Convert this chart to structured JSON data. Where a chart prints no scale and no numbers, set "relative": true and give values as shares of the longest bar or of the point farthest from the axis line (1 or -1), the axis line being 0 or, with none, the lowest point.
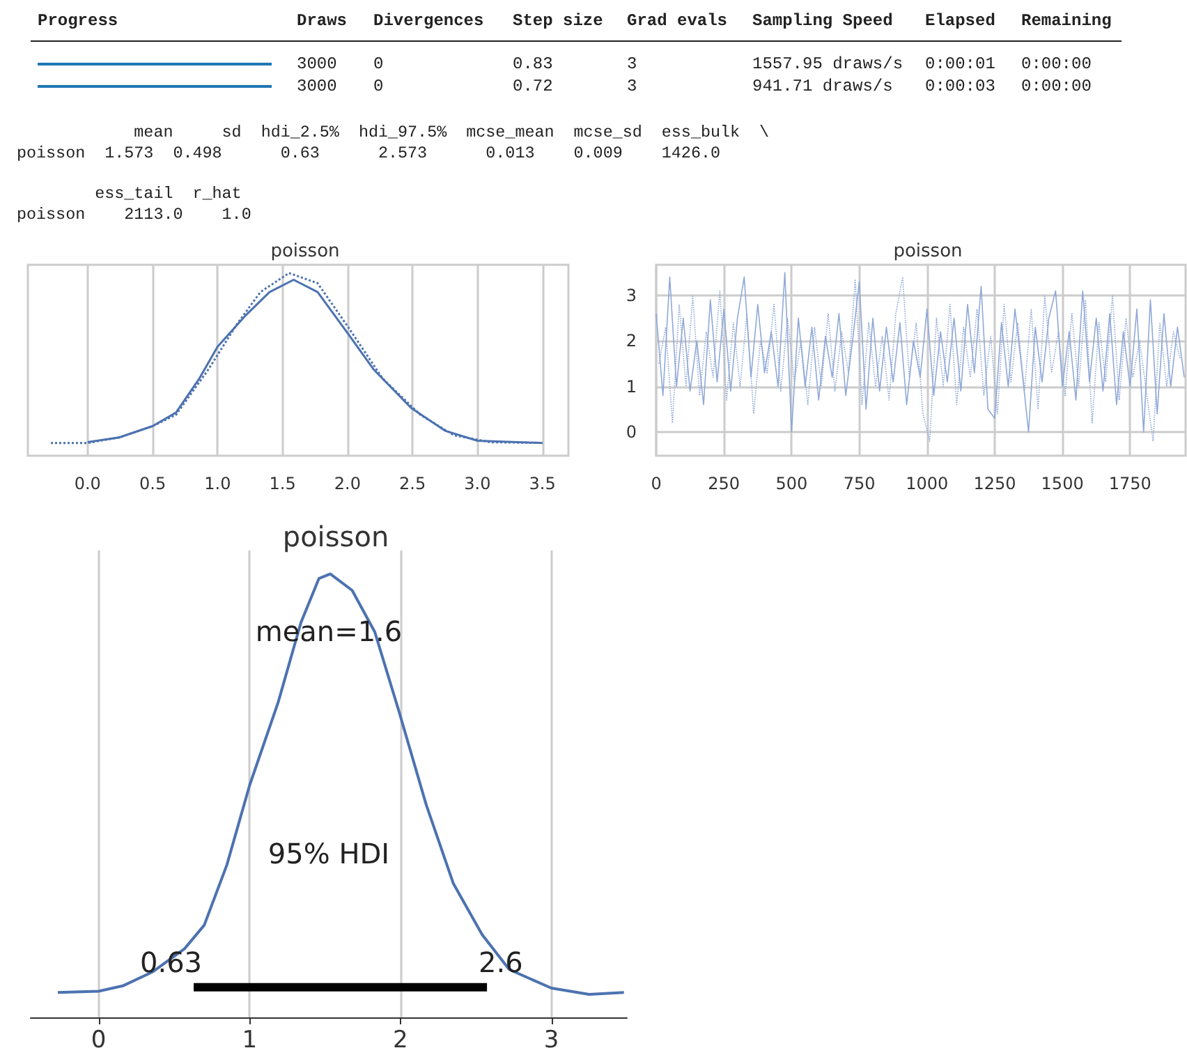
{
  "chart_data": [
    {
      "type": "other",
      "annotations": [
        "Progress",
        "Draws",
        "Divergences",
        "Step size",
        "Grad evals",
        "Sampling Speed",
        "Elapsed",
        "Remaining",
        "3000",
        "0",
        "0.83",
        "3",
        "1557.95 draws/s",
        "0:00:01",
        "0:00:00",
        "3000",
        "0",
        "0.72",
        "3",
        "941.71 draws/s",
        "0:00:03",
        "0:00:00"
      ]
    },
    {
      "type": "other",
      "annotations": [
        "            mean     sd  hdi_2.5%  hdi_97.5%  mcse_mean  mcse_sd  ess_bulk  \\",
        "poisson  1.573  0.498      0.63      2.573      0.013    0.009    1426.0",
        "        ess_tail  r_hat",
        "poisson    2113.0    1.0"
      ]
    },
    {
      "type": "line",
      "title": "poisson",
      "relative": true,
      "grid": "x",
      "xlim": [
        -0.46,
        3.7
      ],
      "xticks": [
        {
          "value": 0,
          "label": "0.0"
        },
        {
          "value": 0.5,
          "label": "0.5"
        },
        {
          "value": 1,
          "label": "1.0"
        },
        {
          "value": 1.5,
          "label": "1.5"
        },
        {
          "value": 2,
          "label": "2.0"
        },
        {
          "value": 2.5,
          "label": "2.5"
        },
        {
          "value": 3,
          "label": "3.0"
        },
        {
          "value": 3.5,
          "label": "3.5"
        }
      ],
      "series": [
        {
          "color": "#4c72b0",
          "line_style": "solid",
          "x": [
            0,
            0.243,
            0.5,
            0.68,
            0.86,
            1.0,
            1.22,
            1.4,
            1.585,
            1.77,
            2.0,
            2.2,
            2.49,
            2.75,
            3.0,
            3.5
          ],
          "values": [
            0.074,
            0.1,
            0.162,
            0.236,
            0.423,
            0.597,
            0.771,
            0.896,
            0.963,
            0.896,
            0.672,
            0.473,
            0.261,
            0.137,
            0.082,
            0.07
          ]
        },
        {
          "color": "#4c72b0",
          "line_style": "dotted",
          "x": [
            -0.283,
            0,
            0.243,
            0.5,
            0.68,
            0.93,
            1.15,
            1.33,
            1.55,
            1.77,
            2.0,
            2.27,
            2.56,
            2.82,
            3.1,
            3.5
          ],
          "values": [
            0.07,
            0.07,
            0.1,
            0.162,
            0.224,
            0.473,
            0.721,
            0.896,
            1.0,
            0.944,
            0.709,
            0.423,
            0.224,
            0.112,
            0.074,
            0.07
          ]
        }
      ]
    },
    {
      "type": "line",
      "title": "poisson",
      "grid": true,
      "xlim": [
        0,
        1955
      ],
      "ylim": [
        -0.52,
        3.67
      ],
      "xticks": [
        0,
        250,
        500,
        750,
        1000,
        1250,
        1500,
        1750
      ],
      "yticks": [
        0,
        1,
        2,
        3
      ],
      "series": [
        {
          "color": "#8fa8d8",
          "line_style": "solid",
          "x": [
            0,
            25,
            50,
            75,
            100,
            125,
            150,
            175,
            200,
            225,
            250,
            275,
            300,
            325,
            350,
            375,
            400,
            425,
            450,
            475,
            500,
            525,
            550,
            575,
            600,
            625,
            650,
            675,
            700,
            725,
            750,
            775,
            800,
            825,
            850,
            875,
            900,
            925,
            950,
            975,
            1000,
            1025,
            1050,
            1075,
            1100,
            1125,
            1150,
            1175,
            1200,
            1225,
            1250,
            1275,
            1300,
            1325,
            1350,
            1375,
            1400,
            1425,
            1450,
            1475,
            1500,
            1525,
            1550,
            1575,
            1600,
            1625,
            1650,
            1675,
            1700,
            1725,
            1750,
            1775,
            1800,
            1825,
            1850,
            1875,
            1900,
            1925,
            1950
          ],
          "values": [
            2.6,
            0.8,
            3.4,
            1.0,
            2.5,
            0.9,
            2.0,
            0.6,
            2.9,
            1.1,
            2.7,
            0.9,
            2.5,
            3.4,
            1.2,
            2.8,
            1.3,
            2.2,
            1.0,
            3.5,
            0.0,
            2.5,
            1.0,
            2.3,
            0.7,
            2.1,
            1.2,
            2.6,
            0.8,
            2.0,
            3.3,
            0.5,
            2.5,
            0.9,
            2.3,
            1.1,
            2.4,
            0.6,
            2.0,
            1.2,
            2.7,
            0.8,
            2.2,
            1.1,
            2.5,
            0.9,
            2.8,
            1.3,
            3.2,
            0.5,
            0.3,
            2.4,
            1.0,
            2.7,
            1.4,
            0.0,
            2.3,
            1.1,
            2.5,
            3.1,
            1.0,
            2.2,
            0.7,
            3.1,
            1.1,
            2.5,
            0.9,
            2.6,
            0.6,
            2.2,
            1.0,
            2.7,
            0.0,
            2.9,
            0.4,
            2.6,
            1.0,
            2.3,
            1.2
          ]
        },
        {
          "color": "#8fa8d8",
          "line_style": "dotted",
          "x": [
            10,
            35,
            60,
            85,
            110,
            135,
            160,
            185,
            210,
            235,
            260,
            285,
            310,
            335,
            360,
            385,
            410,
            435,
            460,
            485,
            510,
            535,
            560,
            585,
            610,
            635,
            660,
            685,
            710,
            735,
            760,
            785,
            810,
            835,
            860,
            885,
            910,
            935,
            960,
            985,
            1010,
            1035,
            1060,
            1085,
            1110,
            1135,
            1160,
            1185,
            1210,
            1235,
            1260,
            1285,
            1310,
            1335,
            1360,
            1385,
            1410,
            1435,
            1460,
            1485,
            1510,
            1535,
            1560,
            1585,
            1610,
            1635,
            1660,
            1685,
            1710,
            1735,
            1760,
            1785,
            1810,
            1835,
            1860,
            1885,
            1910,
            1935
          ],
          "values": [
            1.5,
            2.3,
            0.2,
            2.8,
            1.0,
            3.0,
            0.8,
            2.2,
            1.2,
            3.1,
            0.7,
            2.4,
            1.0,
            2.6,
            0.4,
            2.0,
            1.3,
            2.8,
            0.9,
            2.5,
            1.1,
            2.0,
            0.6,
            2.3,
            1.0,
            2.6,
            0.9,
            2.2,
            1.3,
            3.35,
            0.6,
            2.4,
            1.0,
            2.1,
            0.7,
            2.6,
            3.4,
            1.2,
            2.4,
            0.4,
            -0.2,
            2.5,
            1.0,
            2.8,
            0.6,
            2.3,
            1.2,
            2.7,
            0.8,
            2.1,
            0.4,
            2.8,
            1.1,
            2.4,
            0.9,
            2.7,
            0.5,
            3.0,
            1.3,
            2.2,
            0.8,
            2.6,
            1.0,
            2.9,
            0.2,
            2.4,
            1.1,
            3.0,
            0.7,
            2.5,
            1.2,
            2.0,
            0.9,
            -0.2,
            2.4,
            1.0,
            2.2,
            1.6
          ]
        }
      ]
    },
    {
      "type": "line",
      "title": "poisson",
      "relative": true,
      "grid": "x",
      "xlim": [
        -0.45,
        3.5
      ],
      "xticks": [
        0,
        1,
        2,
        3
      ],
      "series": [
        {
          "color": "#4c72b0",
          "x": [
            -0.27,
            0,
            0.16,
            0.36,
            0.57,
            0.7,
            0.85,
            1.0,
            1.19,
            1.34,
            1.46,
            1.535,
            1.68,
            1.83,
            1.99,
            2.17,
            2.35,
            2.54,
            2.72,
            3.0,
            3.25,
            3.48
          ],
          "values": [
            0.056,
            0.059,
            0.071,
            0.103,
            0.155,
            0.208,
            0.344,
            0.523,
            0.711,
            0.89,
            0.99,
            1.0,
            0.963,
            0.869,
            0.69,
            0.48,
            0.302,
            0.187,
            0.108,
            0.066,
            0.052,
            0.056
          ]
        },
        {
          "color": "#000000",
          "x": [
            0.63,
            2.573
          ],
          "values": [
            0.068,
            0.068
          ]
        }
      ],
      "annotations": [
        "mean=1.6",
        "95% HDI",
        {
          "text": "0.63",
          "x": 0.63,
          "y": 0.068
        },
        {
          "text": "2.6",
          "x": 2.573,
          "y": 0.068
        }
      ]
    }
  ]
}
